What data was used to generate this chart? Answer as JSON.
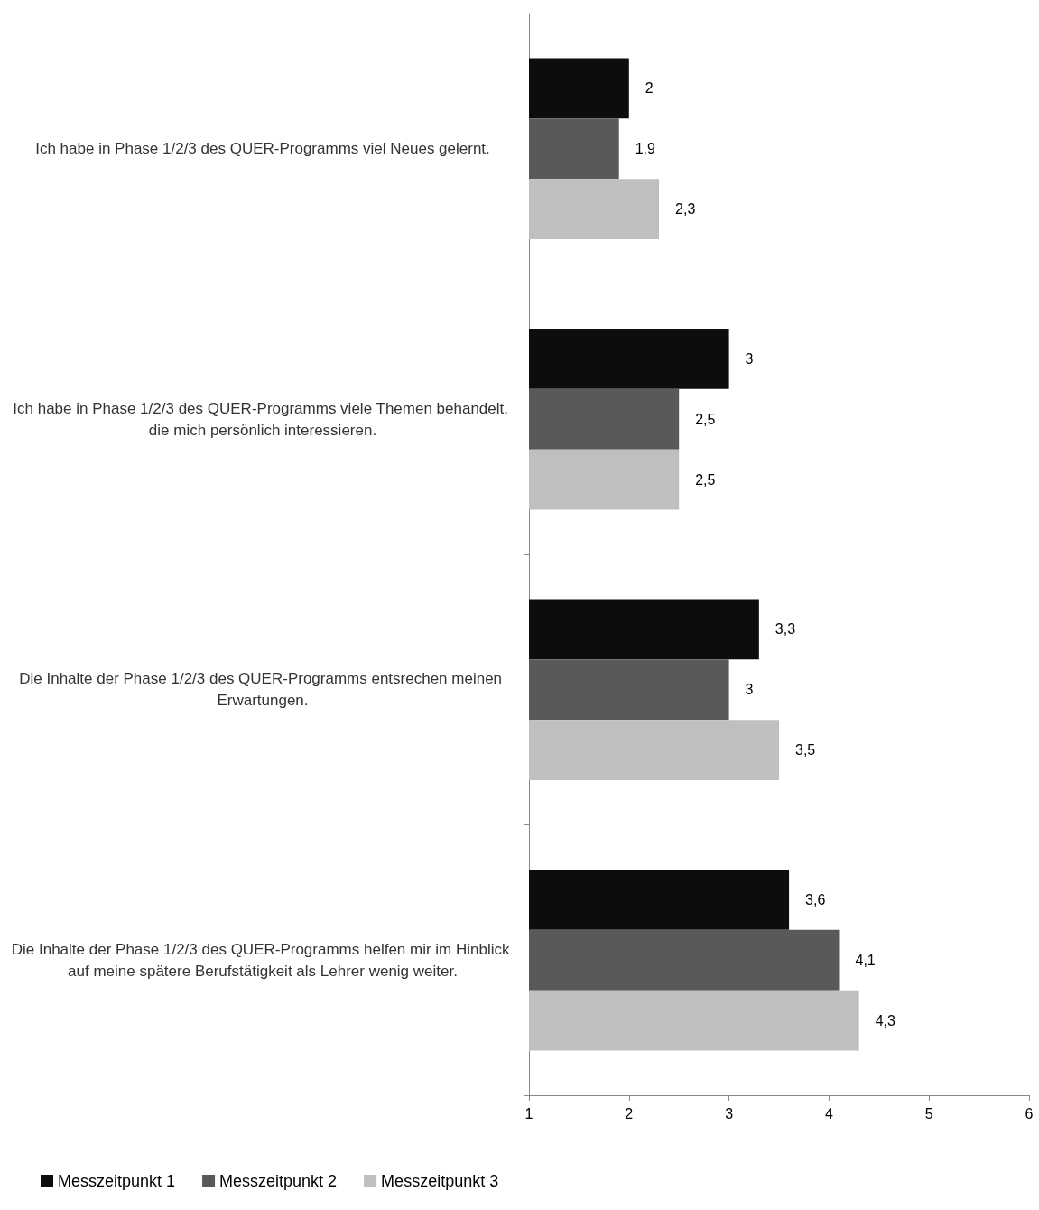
{
  "chart_data": {
    "type": "bar",
    "orientation": "horizontal",
    "categories": [
      "Ich habe in Phase 1/2/3 des QUER-Programms viel Neues gelernt.",
      "Ich habe in Phase 1/2/3 des QUER-Programms viele Themen behandelt, die mich persönlich interessieren.",
      "Die Inhalte der Phase 1/2/3 des QUER-Programms entsrechen meinen Erwartungen.",
      "Die Inhalte der Phase 1/2/3 des QUER-Programms helfen mir im Hinblick auf meine spätere Berufstätigkeit als Lehrer wenig weiter."
    ],
    "series": [
      {
        "name": "Messzeitpunkt 1",
        "color": "#0d0d0d",
        "values": [
          2,
          3,
          3.3,
          3.6
        ],
        "value_labels": [
          "2",
          "3",
          "3,3",
          "3,6"
        ]
      },
      {
        "name": "Messzeitpunkt 2",
        "color": "#595959",
        "values": [
          1.9,
          2.5,
          3,
          4.1
        ],
        "value_labels": [
          "1,9",
          "2,5",
          "3",
          "4,1"
        ]
      },
      {
        "name": "Messzeitpunkt 3",
        "color": "#bfbfbf",
        "values": [
          2.3,
          2.5,
          3.5,
          4.3
        ],
        "value_labels": [
          "2,3",
          "2,5",
          "3,5",
          "4,3"
        ]
      }
    ],
    "xlim": [
      1,
      6
    ],
    "xticks": [
      1,
      2,
      3,
      4,
      5,
      6
    ],
    "grid": false,
    "legend": "bottom left"
  }
}
